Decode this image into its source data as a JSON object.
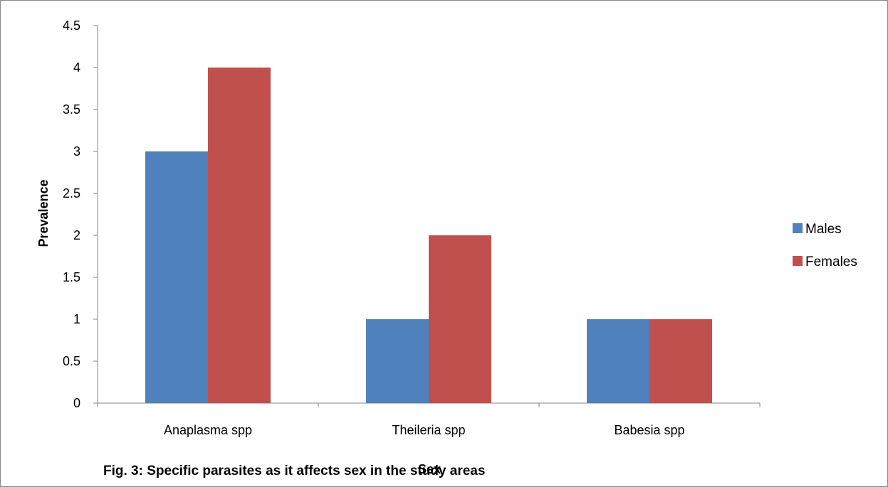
{
  "chart_data": {
    "type": "bar",
    "categories": [
      "Anaplasma spp",
      "Theileria spp",
      "Babesia spp"
    ],
    "series": [
      {
        "name": "Males",
        "values": [
          3,
          1,
          1
        ],
        "color": "#4F81BD"
      },
      {
        "name": "Females",
        "values": [
          4,
          2,
          1
        ],
        "color": "#C0504D"
      }
    ],
    "xlabel": "Sex",
    "ylabel": "Prevalence",
    "ylim": [
      0,
      4.5
    ],
    "yticks": [
      "0",
      "0.5",
      "1",
      "1.5",
      "2",
      "2.5",
      "3",
      "3.5",
      "4",
      "4.5"
    ],
    "grid": false,
    "legend_position": "right"
  },
  "caption": "Fig. 3: Specific parasites as it affects sex in the study areas"
}
